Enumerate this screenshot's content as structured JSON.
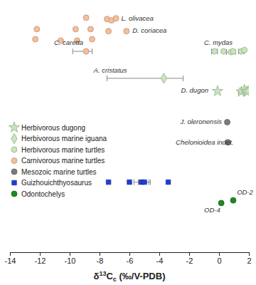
{
  "chart_data": {
    "type": "scatter",
    "x_label": "δ13Cc (‰/V-PDB)",
    "xlim": [
      -14,
      2
    ],
    "xticks": [
      -14,
      -12,
      -10,
      -8,
      -6,
      -4,
      -2,
      0,
      2
    ],
    "ylim": [
      0,
      37
    ],
    "tick_labels": "x",
    "grid": false,
    "legend": "left",
    "series": [
      {
        "name": "Herbivorous dugong",
        "color": "#c6e6bc",
        "marker": "star",
        "x": [
          -0.1,
          1.5,
          1.7,
          1.85,
          1.95
        ],
        "y": [
          23.9,
          23.8,
          24.1,
          23.8,
          23.9
        ],
        "xerr": [
          null,
          [
            0.2,
            0.2
          ],
          null,
          [
            0.15,
            0.15
          ],
          null
        ]
      },
      {
        "name": "Herbivorous marine iguana",
        "color": "#c6e6bc",
        "marker": "diamond",
        "x": [
          -3.7
        ],
        "y": [
          25.8
        ],
        "xerr": [
          [
            3.8,
            1.3
          ]
        ]
      },
      {
        "name": "Herbivorous marine turtles",
        "color": "#c6e6bc",
        "marker": "circle",
        "x": [
          -0.3,
          0.3,
          0.8,
          0.95,
          1.5,
          1.7
        ],
        "y": [
          29.8,
          29.8,
          29.7,
          29.8,
          29.8,
          30.0
        ],
        "xerr": [
          [
            0.2,
            0.2
          ],
          null,
          [
            0.3,
            0.3
          ],
          null,
          [
            0.2,
            0.2
          ],
          null
        ]
      },
      {
        "name": "Carnivorous marine turtles",
        "color": "#f5bf9b",
        "marker": "circle",
        "x": [
          -8.9,
          -7.5,
          -7.2,
          -6.9,
          -12.2,
          -9.6,
          -8.6,
          -7.4,
          -6.2,
          -12.3,
          -10.6,
          -9.5,
          -8.5,
          -8.9
        ],
        "y": [
          34.8,
          34.6,
          34.4,
          34.7,
          33.1,
          33.1,
          33.1,
          32.8,
          32.8,
          31.6,
          31.4,
          31.4,
          31.6,
          29.8
        ],
        "xerr": [
          null,
          null,
          null,
          null,
          null,
          null,
          null,
          null,
          null,
          null,
          null,
          null,
          null,
          [
            0.9,
            0.4
          ]
        ]
      },
      {
        "name": "Mesozoic marine turtles",
        "color": "#7a7a7a",
        "marker": "circle",
        "x": [
          0.55,
          0.6
        ],
        "y": [
          19.3,
          16.3
        ],
        "xerr": [
          null,
          null
        ]
      },
      {
        "name": "Guizhouichthyosaurus",
        "color": "#1f3fd6",
        "marker": "square",
        "x": [
          -7.4,
          -6.0,
          -5.2,
          -5.0,
          -3.4
        ],
        "y": [
          10.4,
          10.4,
          10.4,
          10.4,
          10.4
        ],
        "xerr": [
          null,
          null,
          [
            0.5,
            0.5
          ],
          [
            0.4,
            0.4
          ],
          null
        ]
      },
      {
        "name": "Odontochelys",
        "color": "#1f8a1f",
        "marker": "circle",
        "x": [
          0.15,
          0.95
        ],
        "y": [
          7.3,
          7.7
        ],
        "xerr": [
          null,
          null
        ]
      }
    ],
    "annotations": [
      {
        "text": "L. olivacea",
        "x": -6.55,
        "y": 34.4
      },
      {
        "text": "D. coriacea",
        "x": -5.8,
        "y": 32.6
      },
      {
        "text": "C. caretta",
        "x": -11.05,
        "y": 30.8
      },
      {
        "text": "C. mydas",
        "x": -1.0,
        "y": 30.8
      },
      {
        "text": "A. cristatus",
        "x": -8.4,
        "y": 26.6
      },
      {
        "text": "D. dugon",
        "x": -2.55,
        "y": 23.7
      },
      {
        "text": "J. oleronensis",
        "x": -2.6,
        "y": 19.0
      },
      {
        "text": "Chelonioidea indet.",
        "x": -2.9,
        "y": 16.0
      },
      {
        "text": "OD-4",
        "x": -1.0,
        "y": 5.9
      },
      {
        "text": "OD-2",
        "x": 1.2,
        "y": 8.6
      }
    ]
  }
}
